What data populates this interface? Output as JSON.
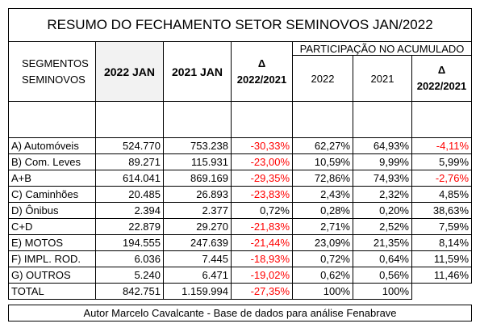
{
  "title": "RESUMO DO FECHAMENTO SETOR SEMINOVOS JAN/2022",
  "headers": {
    "segments_line1": "SEGMENTOS",
    "segments_line2": "SEMINOVOS",
    "col_2022": "2022  JAN",
    "col_2021": "2021  JAN",
    "col_delta_symbol": "Δ",
    "col_delta_period": "2022/2021",
    "participacao": "PARTICIPAÇÃO NO ACUMULADO",
    "part_2022": "2022",
    "part_2021": "2021",
    "part_delta_symbol": "Δ",
    "part_delta_period": "2022/2021"
  },
  "rows": [
    {
      "segment": "A) Automóveis",
      "v2022": "524.770",
      "v2021": "753.238",
      "delta": "-30,33%",
      "p2022": "62,27%",
      "p2021": "64,93%",
      "pdelta": "-4,11%"
    },
    {
      "segment": "B) Com. Leves",
      "v2022": "89.271",
      "v2021": "115.931",
      "delta": "-23,00%",
      "p2022": "10,59%",
      "p2021": "9,99%",
      "pdelta": "5,99%"
    },
    {
      "segment": "A+B",
      "v2022": "614.041",
      "v2021": "869.169",
      "delta": "-29,35%",
      "p2022": "72,86%",
      "p2021": "74,93%",
      "pdelta": "-2,76%"
    },
    {
      "segment": "C) Caminhões",
      "v2022": "20.485",
      "v2021": "26.893",
      "delta": "-23,83%",
      "p2022": "2,43%",
      "p2021": "2,32%",
      "pdelta": "4,85%"
    },
    {
      "segment": "D) Ônibus",
      "v2022": "2.394",
      "v2021": "2.377",
      "delta": "0,72%",
      "p2022": "0,28%",
      "p2021": "0,20%",
      "pdelta": "38,63%"
    },
    {
      "segment": "C+D",
      "v2022": "22.879",
      "v2021": "29.270",
      "delta": "-21,83%",
      "p2022": "2,71%",
      "p2021": "2,52%",
      "pdelta": "7,59%"
    },
    {
      "segment": "E) MOTOS",
      "v2022": "194.555",
      "v2021": "247.639",
      "delta": "-21,44%",
      "p2022": "23,09%",
      "p2021": "21,35%",
      "pdelta": "8,14%"
    },
    {
      "segment": "F) IMPL. ROD.",
      "v2022": "6.036",
      "v2021": "7.445",
      "delta": "-18,93%",
      "p2022": "0,72%",
      "p2021": "0,64%",
      "pdelta": "11,59%"
    },
    {
      "segment": "G) OUTROS",
      "v2022": "5.240",
      "v2021": "6.471",
      "delta": "-19,02%",
      "p2022": "0,62%",
      "p2021": "0,56%",
      "pdelta": "11,46%"
    }
  ],
  "total": {
    "segment": "TOTAL",
    "v2022": "842.751",
    "v2021": "1.159.994",
    "delta": "-27,35%",
    "p2022": "100%",
    "p2021": "100%"
  },
  "footer": "Autor Marcelo Cavalcante - Base de dados para análise Fenabrave",
  "colors": {
    "negative": "#ff0000",
    "header_shade": "#f2f2f2",
    "border": "#000000"
  }
}
